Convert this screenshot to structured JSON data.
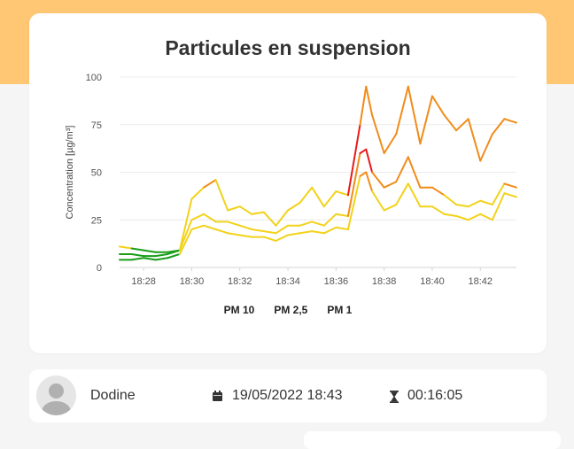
{
  "theme": {
    "accent": "#ffc774",
    "background": "#f5f5f5"
  },
  "chart_card": {
    "title": "Particules en suspension",
    "legend": [
      "PM 10",
      "PM 2,5",
      "PM 1"
    ]
  },
  "chart_data": {
    "type": "line",
    "title": "Particules en suspension",
    "xlabel": "",
    "ylabel": "Concentration [µg/m³]",
    "ylim": [
      0,
      100
    ],
    "xlim": [
      "18:27",
      "18:43:30"
    ],
    "yticks": [
      0,
      25,
      50,
      75,
      100
    ],
    "xticks": [
      "18:28",
      "18:30",
      "18:32",
      "18:34",
      "18:36",
      "18:38",
      "18:40",
      "18:42"
    ],
    "grid": "horizontal",
    "legend_position": "bottom",
    "color_scale": {
      "good": "#1a9e1a",
      "moderate": "#f2d21b",
      "poor": "#f08c1a",
      "bad": "#e8191b"
    },
    "x": [
      "18:27:00",
      "18:27:30",
      "18:28:00",
      "18:28:30",
      "18:29:00",
      "18:29:30",
      "18:30:00",
      "18:30:30",
      "18:31:00",
      "18:31:30",
      "18:32:00",
      "18:32:30",
      "18:33:00",
      "18:33:30",
      "18:34:00",
      "18:34:30",
      "18:35:00",
      "18:35:30",
      "18:36:00",
      "18:36:30",
      "18:37:00",
      "18:37:15",
      "18:37:30",
      "18:38:00",
      "18:38:30",
      "18:39:00",
      "18:39:30",
      "18:40:00",
      "18:40:30",
      "18:41:00",
      "18:41:30",
      "18:42:00",
      "18:42:30",
      "18:43:00",
      "18:43:30"
    ],
    "series": [
      {
        "name": "PM 10",
        "values": [
          11,
          10,
          9,
          8,
          8,
          9,
          36,
          42,
          46,
          30,
          32,
          28,
          29,
          22,
          30,
          34,
          42,
          32,
          40,
          38,
          75,
          95,
          80,
          60,
          70,
          95,
          65,
          90,
          80,
          72,
          78,
          56,
          70,
          78,
          76
        ]
      },
      {
        "name": "PM 2,5",
        "values": [
          7,
          7,
          6,
          6,
          7,
          9,
          25,
          28,
          24,
          24,
          22,
          20,
          19,
          18,
          22,
          22,
          24,
          22,
          28,
          27,
          60,
          62,
          50,
          42,
          45,
          58,
          42,
          42,
          38,
          33,
          32,
          35,
          33,
          44,
          42
        ]
      },
      {
        "name": "PM 1",
        "values": [
          4,
          4,
          5,
          4,
          5,
          7,
          20,
          22,
          20,
          18,
          17,
          16,
          16,
          14,
          17,
          18,
          19,
          18,
          21,
          20,
          48,
          50,
          40,
          30,
          33,
          44,
          32,
          32,
          28,
          27,
          25,
          28,
          25,
          39,
          37
        ]
      }
    ]
  },
  "session": {
    "user_name": "Dodine",
    "date_icon": "calendar-icon",
    "date": "19/05/2022 18:43",
    "duration_icon": "hourglass-icon",
    "duration": "00:16:05"
  }
}
